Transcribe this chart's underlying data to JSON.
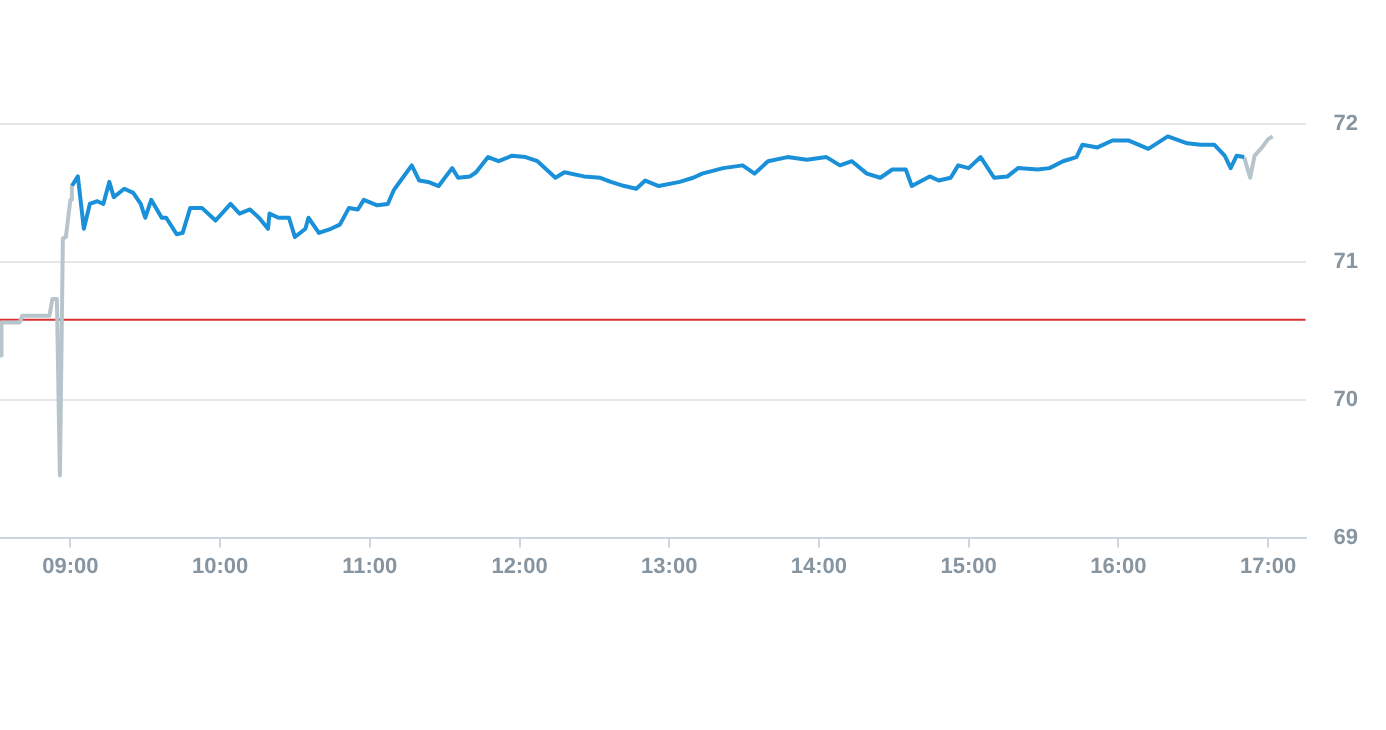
{
  "chart_data": {
    "type": "line",
    "xlim": [
      8.53,
      17.25
    ],
    "ylim": [
      69,
      72
    ],
    "xticks": [
      {
        "value": 9,
        "label": "09:00"
      },
      {
        "value": 10,
        "label": "10:00"
      },
      {
        "value": 11,
        "label": "11:00"
      },
      {
        "value": 12,
        "label": "12:00"
      },
      {
        "value": 13,
        "label": "13:00"
      },
      {
        "value": 14,
        "label": "14:00"
      },
      {
        "value": 15,
        "label": "15:00"
      },
      {
        "value": 16,
        "label": "16:00"
      },
      {
        "value": 17,
        "label": "17:00"
      }
    ],
    "yticks": [
      69,
      70,
      71,
      72
    ],
    "grid": "y",
    "legend": false,
    "marker": "none",
    "line_style": "solid",
    "ref_lines": [
      {
        "axis": "y",
        "value": 70.58,
        "color": "#d93030"
      }
    ],
    "series": [
      {
        "color": "#b8c4cc",
        "x": [
          8.53,
          8.54,
          8.66,
          8.68,
          8.86,
          8.88,
          8.91,
          8.93,
          8.95,
          8.97,
          9.0,
          9.01
        ],
        "values": [
          70.32,
          70.56,
          70.56,
          70.61,
          70.61,
          70.73,
          70.73,
          69.45,
          71.17,
          71.18,
          71.45,
          71.55
        ]
      },
      {
        "color": "#1a90d8",
        "x": [
          9.01,
          9.05,
          9.09,
          9.13,
          9.18,
          9.22,
          9.26,
          9.29,
          9.36,
          9.42,
          9.47,
          9.5,
          9.54,
          9.61,
          9.64,
          9.71,
          9.75,
          9.8,
          9.88,
          9.97,
          10.07,
          10.13,
          10.2,
          10.26,
          10.32,
          10.33,
          10.39,
          10.46,
          10.5,
          10.57,
          10.59,
          10.66,
          10.74,
          10.8,
          10.86,
          10.92,
          10.96,
          11.05,
          11.12,
          11.16,
          11.22,
          11.28,
          11.33,
          11.39,
          11.46,
          11.55,
          11.59,
          11.67,
          11.71,
          11.79,
          11.86,
          11.95,
          12.04,
          12.12,
          12.24,
          12.3,
          12.43,
          12.54,
          12.61,
          12.7,
          12.78,
          12.84,
          12.93,
          13.07,
          13.16,
          13.22,
          13.36,
          13.49,
          13.57,
          13.66,
          13.79,
          13.92,
          14.05,
          14.14,
          14.22,
          14.32,
          14.41,
          14.49,
          14.58,
          14.62,
          14.74,
          14.8,
          14.88,
          14.93,
          15.0,
          15.08,
          15.17,
          15.26,
          15.33,
          15.46,
          15.54,
          15.63,
          15.72,
          15.76,
          15.86,
          15.96,
          16.07,
          16.2,
          16.33,
          16.46,
          16.55,
          16.64,
          16.71,
          16.75,
          16.79,
          16.84
        ],
        "values": [
          71.55,
          71.62,
          71.24,
          71.42,
          71.44,
          71.42,
          71.58,
          71.47,
          71.53,
          71.5,
          71.42,
          71.32,
          71.45,
          71.32,
          71.32,
          71.2,
          71.21,
          71.39,
          71.39,
          71.3,
          71.42,
          71.35,
          71.38,
          71.32,
          71.24,
          71.35,
          71.32,
          71.32,
          71.18,
          71.24,
          71.32,
          71.21,
          71.24,
          71.27,
          71.39,
          71.38,
          71.45,
          71.41,
          71.42,
          71.52,
          71.61,
          71.7,
          71.59,
          71.58,
          71.55,
          71.68,
          71.61,
          71.62,
          71.65,
          71.76,
          71.73,
          71.77,
          71.76,
          71.73,
          71.61,
          71.65,
          71.62,
          71.61,
          71.58,
          71.55,
          71.53,
          71.59,
          71.55,
          71.58,
          71.61,
          71.64,
          71.68,
          71.7,
          71.64,
          71.73,
          71.76,
          71.74,
          71.76,
          71.7,
          71.73,
          71.64,
          71.61,
          71.67,
          71.67,
          71.55,
          71.62,
          71.59,
          71.61,
          71.7,
          71.68,
          71.76,
          71.61,
          71.62,
          71.68,
          71.67,
          71.68,
          71.73,
          71.76,
          71.85,
          71.83,
          71.88,
          71.88,
          71.82,
          71.91,
          71.86,
          71.85,
          71.85,
          71.77,
          71.68,
          71.77,
          71.76
        ]
      },
      {
        "color": "#b8c4cc",
        "x": [
          16.84,
          16.88,
          16.91,
          16.96,
          17.0,
          17.03
        ],
        "values": [
          71.76,
          71.61,
          71.77,
          71.83,
          71.89,
          71.91
        ]
      }
    ]
  }
}
